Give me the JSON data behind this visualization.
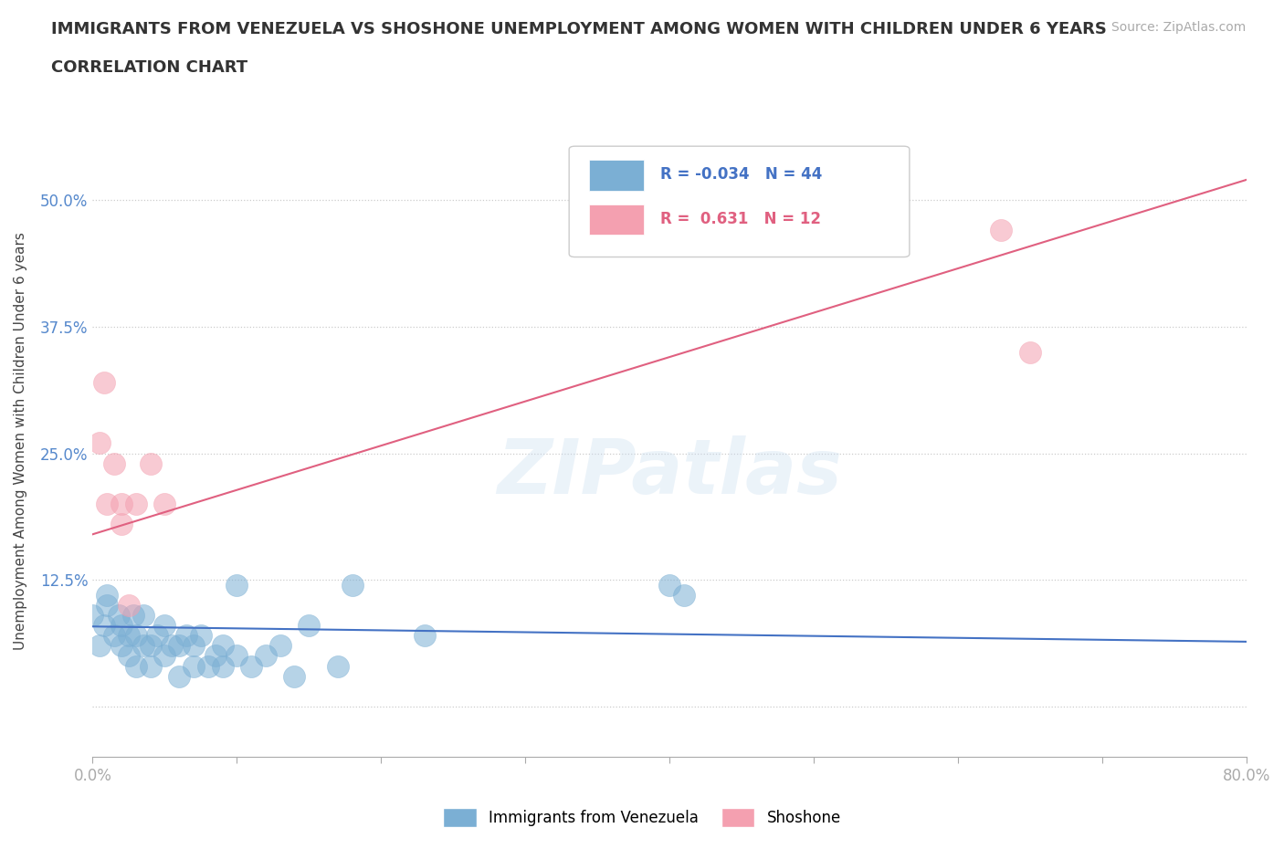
{
  "title_line1": "IMMIGRANTS FROM VENEZUELA VS SHOSHONE UNEMPLOYMENT AMONG WOMEN WITH CHILDREN UNDER 6 YEARS",
  "title_line2": "CORRELATION CHART",
  "source": "Source: ZipAtlas.com",
  "ylabel": "Unemployment Among Women with Children Under 6 years",
  "xlim": [
    0,
    0.8
  ],
  "ylim": [
    -0.05,
    0.575
  ],
  "xticks": [
    0.0,
    0.1,
    0.2,
    0.3,
    0.4,
    0.5,
    0.6,
    0.7,
    0.8
  ],
  "xtick_labels": [
    "0.0%",
    "",
    "",
    "",
    "",
    "",
    "",
    "",
    "80.0%"
  ],
  "yticks": [
    0.0,
    0.125,
    0.25,
    0.375,
    0.5
  ],
  "ytick_labels": [
    "",
    "12.5%",
    "25.0%",
    "37.5%",
    "50.0%"
  ],
  "gridline_color": "#cccccc",
  "background_color": "#ffffff",
  "blue_color": "#7bafd4",
  "pink_color": "#f4a0b0",
  "blue_line_color": "#4472c4",
  "pink_line_color": "#e06080",
  "blue_scatter_x": [
    0.0,
    0.005,
    0.008,
    0.01,
    0.01,
    0.015,
    0.018,
    0.02,
    0.02,
    0.025,
    0.025,
    0.028,
    0.03,
    0.03,
    0.035,
    0.035,
    0.04,
    0.04,
    0.045,
    0.05,
    0.05,
    0.055,
    0.06,
    0.06,
    0.065,
    0.07,
    0.07,
    0.075,
    0.08,
    0.085,
    0.09,
    0.09,
    0.1,
    0.1,
    0.11,
    0.12,
    0.13,
    0.14,
    0.15,
    0.17,
    0.18,
    0.23,
    0.4,
    0.41
  ],
  "blue_scatter_y": [
    0.09,
    0.06,
    0.08,
    0.1,
    0.11,
    0.07,
    0.09,
    0.06,
    0.08,
    0.05,
    0.07,
    0.09,
    0.04,
    0.07,
    0.06,
    0.09,
    0.04,
    0.06,
    0.07,
    0.05,
    0.08,
    0.06,
    0.03,
    0.06,
    0.07,
    0.04,
    0.06,
    0.07,
    0.04,
    0.05,
    0.04,
    0.06,
    0.05,
    0.12,
    0.04,
    0.05,
    0.06,
    0.03,
    0.08,
    0.04,
    0.12,
    0.07,
    0.12,
    0.11
  ],
  "pink_scatter_x": [
    0.005,
    0.008,
    0.01,
    0.015,
    0.02,
    0.02,
    0.025,
    0.03,
    0.04,
    0.05,
    0.63,
    0.65
  ],
  "pink_scatter_y": [
    0.26,
    0.32,
    0.2,
    0.24,
    0.18,
    0.2,
    0.1,
    0.2,
    0.24,
    0.2,
    0.47,
    0.35
  ],
  "blue_trend_x": [
    0.0,
    0.8
  ],
  "blue_trend_y": [
    0.079,
    0.064
  ],
  "pink_trend_x": [
    0.0,
    0.8
  ],
  "pink_trend_y": [
    0.17,
    0.52
  ],
  "legend_r1_val": "-0.034",
  "legend_r1_n": "44",
  "legend_r2_val": "0.631",
  "legend_r2_n": "12",
  "legend_label1": "Immigrants from Venezuela",
  "legend_label2": "Shoshone",
  "ytick_color": "#5588cc",
  "xtick_color": "#888888"
}
